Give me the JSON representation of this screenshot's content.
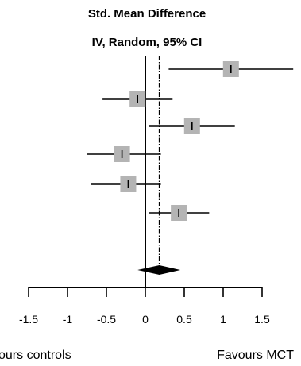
{
  "chart_data": {
    "type": "forest",
    "title": "Std. Mean Difference",
    "subtitle": "IV, Random, 95% CI",
    "xlim": [
      -1.5,
      1.5
    ],
    "x_ticks": [
      -1.5,
      -1,
      -0.5,
      0,
      0.5,
      1,
      1.5
    ],
    "x_tick_labels": [
      "-1.5",
      "-1",
      "-0.5",
      "0",
      "0.5",
      "1",
      "1.5"
    ],
    "left_favour_label": "ours controls",
    "right_favour_label": "Favours MCT",
    "studies": [
      {
        "estimate": 1.1,
        "lower": 0.3,
        "upper": 1.9
      },
      {
        "estimate": -0.1,
        "lower": -0.55,
        "upper": 0.35
      },
      {
        "estimate": 0.6,
        "lower": 0.05,
        "upper": 1.15
      },
      {
        "estimate": -0.3,
        "lower": -0.75,
        "upper": 0.2
      },
      {
        "estimate": -0.22,
        "lower": -0.7,
        "upper": 0.2
      },
      {
        "estimate": 0.43,
        "lower": 0.05,
        "upper": 0.82
      }
    ],
    "pooled": {
      "estimate": 0.18,
      "lower": -0.1,
      "upper": 0.45
    },
    "colors": {
      "box": "#b4b4b4",
      "line": "#000000"
    }
  }
}
